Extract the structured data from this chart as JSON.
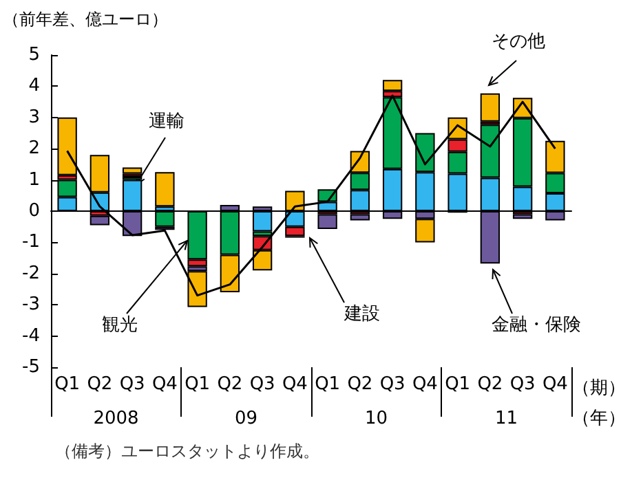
{
  "chart_data": {
    "type": "bar",
    "stacked": true,
    "ylabel": "（前年差、億ユーロ）",
    "categories": [
      "Q1",
      "Q2",
      "Q3",
      "Q4",
      "Q1",
      "Q2",
      "Q3",
      "Q4",
      "Q1",
      "Q2",
      "Q3",
      "Q4",
      "Q1",
      "Q2",
      "Q3",
      "Q4"
    ],
    "ylim": [
      -5,
      5
    ],
    "yticks": [
      -5,
      -4,
      -3,
      -2,
      -1,
      0,
      1,
      2,
      3,
      4,
      5
    ],
    "legend": false,
    "series": [
      {
        "name": "運輸",
        "color": "#33b5f0",
        "values": [
          0.45,
          0.6,
          1.0,
          0.15,
          null,
          null,
          -0.65,
          -0.5,
          0.3,
          0.68,
          1.35,
          1.25,
          1.2,
          1.07,
          0.78,
          0.57
        ]
      },
      {
        "name": "観光",
        "color": "#00a651",
        "values": [
          0.55,
          null,
          0.1,
          -0.5,
          -1.55,
          -1.4,
          -0.15,
          null,
          0.4,
          0.55,
          2.3,
          1.25,
          0.7,
          1.7,
          2.2,
          0.65
        ]
      },
      {
        "name": "建設",
        "color": "#e8212a",
        "values": [
          0.15,
          -0.15,
          0.1,
          null,
          -0.22,
          null,
          -0.45,
          -0.3,
          -0.1,
          -0.1,
          0.2,
          null,
          0.4,
          0.1,
          -0.1,
          null
        ]
      },
      {
        "name": "金融・保険",
        "color": "#6c5a9c",
        "values": [
          null,
          -0.3,
          -0.8,
          -0.1,
          -0.15,
          0.2,
          0.15,
          -0.05,
          -0.47,
          -0.2,
          -0.25,
          -0.25,
          -0.05,
          -1.68,
          -0.15,
          -0.3
        ]
      },
      {
        "name": "その他",
        "color": "#f8b500",
        "values": [
          1.85,
          1.2,
          0.2,
          1.1,
          -1.15,
          -1.2,
          -0.65,
          0.65,
          null,
          0.7,
          0.35,
          -0.75,
          0.7,
          0.9,
          0.65,
          1.03
        ]
      },
      {
        "type": "line",
        "color": "#000000",
        "marker": "none",
        "values": [
          1.93,
          0.15,
          -0.77,
          -0.62,
          -2.7,
          -2.35,
          -1.15,
          0.15,
          0.3,
          1.7,
          3.7,
          1.5,
          2.75,
          2.07,
          3.5,
          2.0
        ]
      }
    ],
    "annotations": [
      "2008",
      "09",
      "10",
      "11",
      "（期）",
      "（年）",
      "（備考）ユーロスタットより作成。"
    ]
  }
}
